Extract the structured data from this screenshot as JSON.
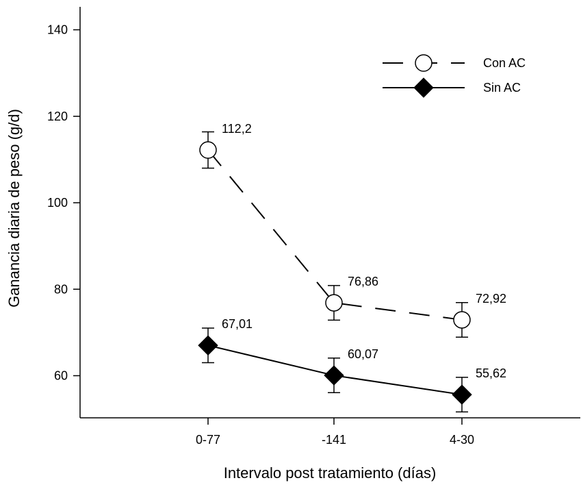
{
  "chart_data": {
    "type": "line",
    "categories": [
      "0-77",
      "-141",
      "4-30"
    ],
    "xlabel": "Intervalo post tratamiento (días)",
    "ylabel": "Ganancia diaria de peso (g/d)",
    "ylim": [
      52,
      145
    ],
    "yticks": [
      60,
      80,
      100,
      120,
      140
    ],
    "grid": false,
    "legend_position": "top-right",
    "series": [
      {
        "name": "Con AC",
        "marker": "open-circle",
        "line": "dashed",
        "values": [
          112.2,
          76.86,
          72.92
        ],
        "labels": [
          "112,2",
          "76,86",
          "72,92"
        ],
        "error": [
          4.2,
          4.0,
          4.0
        ]
      },
      {
        "name": "Sin AC",
        "marker": "filled-diamond",
        "line": "solid",
        "values": [
          67.01,
          60.07,
          55.62
        ],
        "labels": [
          "67,01",
          "60,07",
          "55,62"
        ],
        "error": [
          4.0,
          4.0,
          4.0
        ]
      }
    ]
  }
}
